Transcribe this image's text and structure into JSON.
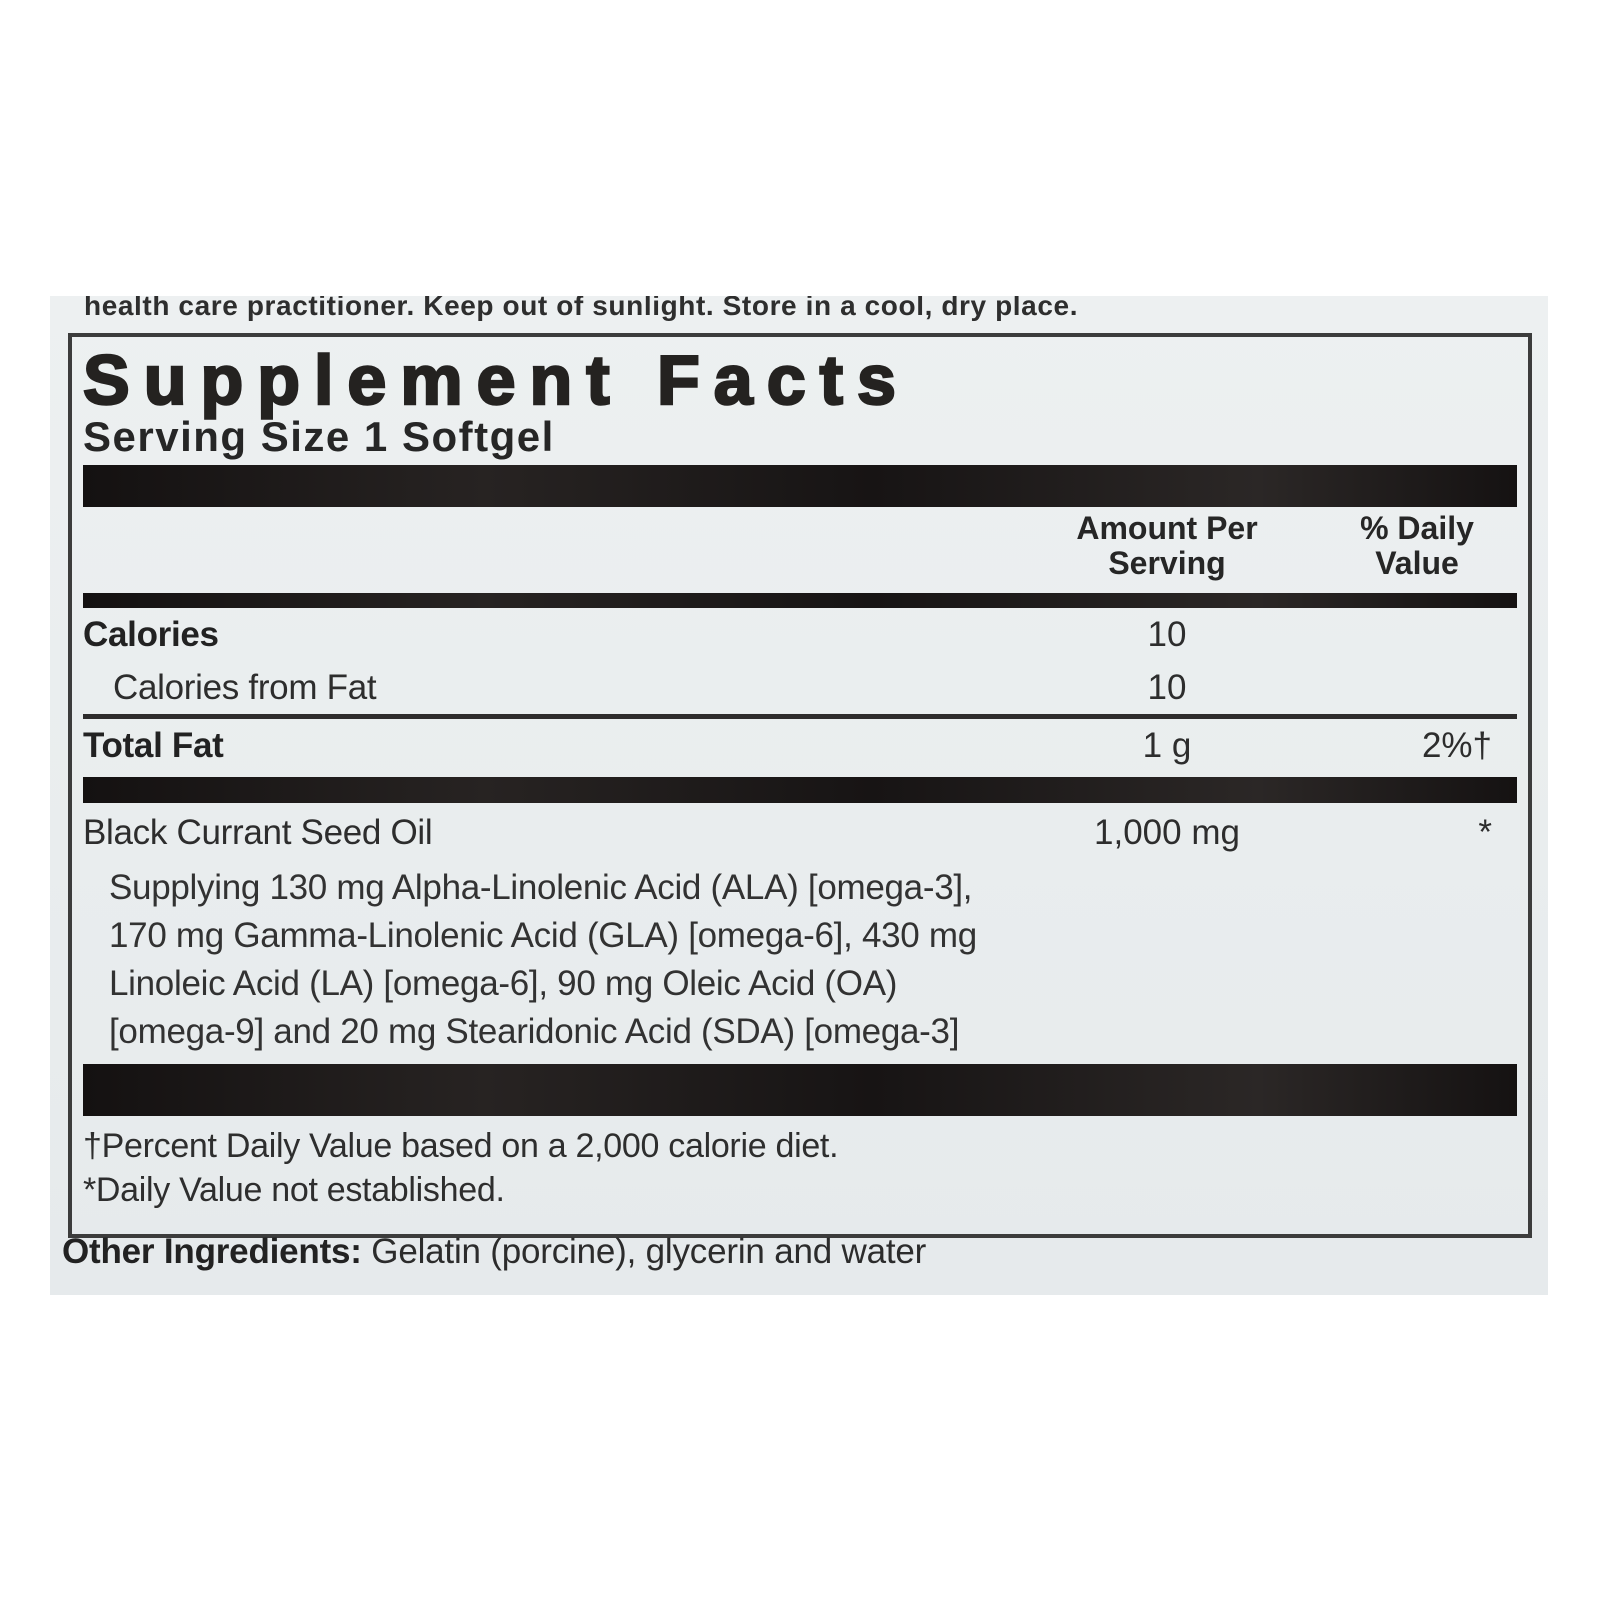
{
  "colors": {
    "page_background": "#ffffff",
    "label_background": "#eaedee",
    "panel_border": "#3c3c3c",
    "bar_color": "#1d1a1a",
    "text_color": "#2a2a2a"
  },
  "top_note": "health care practitioner. Keep out of sunlight. Store in a cool, dry place.",
  "panel": {
    "title": "Supplement Facts",
    "serving_size": "Serving Size 1 Softgel",
    "header": {
      "amount_line1": "Amount Per",
      "amount_line2": "Serving",
      "dv_line1": "% Daily",
      "dv_line2": "Value"
    },
    "rows": [
      {
        "name": "Calories",
        "amount": "10",
        "dv": ""
      },
      {
        "name": "Calories from Fat",
        "amount": "10",
        "dv": ""
      },
      {
        "name": "Total Fat",
        "amount": "1 g",
        "dv": "2%†"
      }
    ],
    "oil": {
      "name": "Black Currant Seed Oil",
      "amount": "1,000 mg",
      "dv": "*",
      "details": [
        "Supplying 130 mg Alpha-Linolenic Acid (ALA) [omega-3],",
        "170 mg Gamma-Linolenic Acid (GLA) [omega-6], 430 mg",
        "Linoleic Acid (LA) [omega-6], 90 mg Oleic Acid (OA)",
        "[omega-9] and 20 mg Stearidonic Acid (SDA) [omega-3]"
      ]
    },
    "footnotes": [
      "†Percent Daily Value based on a 2,000 calorie diet.",
      "*Daily Value not established."
    ]
  },
  "other_ingredients": {
    "label": "Other Ingredients:",
    "text": " Gelatin (porcine), glycerin and water"
  }
}
